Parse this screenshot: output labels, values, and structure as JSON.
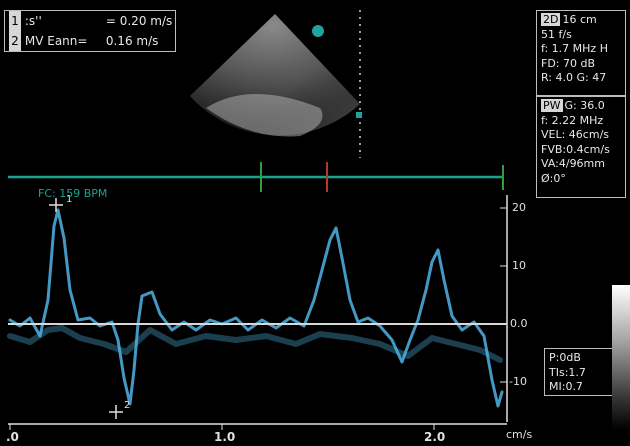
{
  "measurements": [
    {
      "index": "1",
      "name": ":s''",
      "value": "= 0.20 m/s"
    },
    {
      "index": "2",
      "name": "MV Eann=",
      "value": "0.16 m/s"
    }
  ],
  "panel_2d": {
    "header": "2D",
    "lines": [
      "16 cm",
      "51 f/s",
      "f: 1.7 MHz H",
      "FD: 70 dB",
      "R: 4.0   G: 47"
    ],
    "first_extra": "16 cm"
  },
  "panel_pw": {
    "header": "PW",
    "first_extra": "G: 36.0",
    "lines": [
      "f: 2.22 MHz",
      "VEL: 46cm/s",
      "FVB:0.4cm/s",
      "VA:4/96mm",
      "Ø:0°"
    ]
  },
  "panel_power": {
    "lines": [
      "P:0dB",
      "TIs:1.7",
      "MI:0.7"
    ]
  },
  "fc_label": "FC: 159 BPM",
  "velocity_ticks": [
    "20",
    "10",
    "0.0",
    "-10"
  ],
  "time_ticks": [
    ".0",
    "1.0",
    "2.0"
  ],
  "unit_label": "cm/s",
  "calipers": [
    "1",
    "2"
  ],
  "colors": {
    "ecg": "#18a38f",
    "doppler": "#4fb4e6",
    "marker_red": "#b03a2e",
    "marker_green": "#2e9f3a"
  }
}
